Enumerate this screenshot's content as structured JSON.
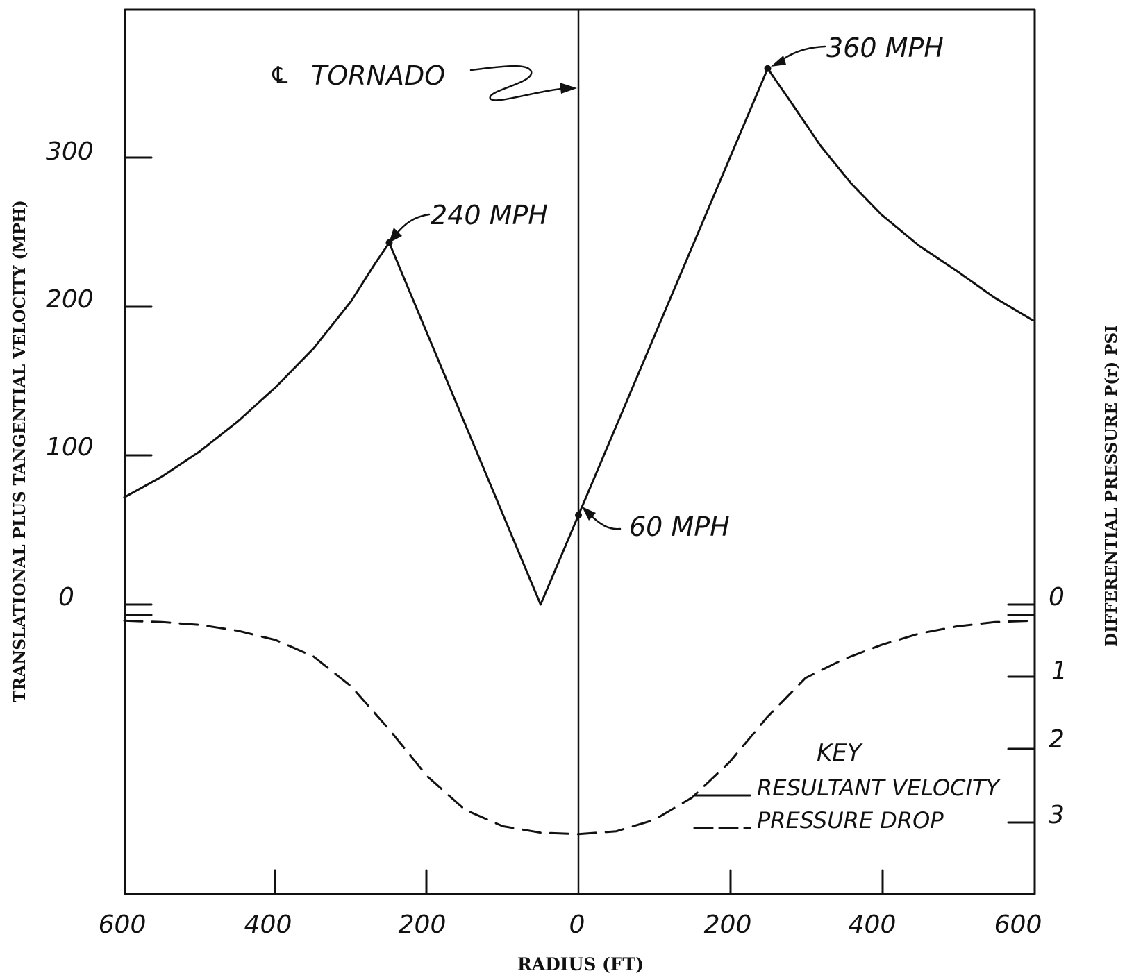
{
  "chart_data": {
    "type": "line",
    "title": "",
    "xlabel": "RADIUS (FT)",
    "ylabel_left": "TRANSLATIONAL PLUS TANGENTIAL VELOCITY (MPH)",
    "ylabel_right": "DIFFERENTIAL PRESSURE P(r) PSI",
    "x_tick_labels": [
      "600",
      "400",
      "200",
      "0",
      "200",
      "400",
      "600"
    ],
    "x_ticks": [
      -600,
      -400,
      -200,
      0,
      200,
      400,
      600
    ],
    "xlim": [
      -600,
      600
    ],
    "left_y_tick_labels": [
      "300",
      "200",
      "100",
      "0"
    ],
    "left_y_ticks": [
      300,
      200,
      100,
      0
    ],
    "ylim_left": [
      -215,
      390
    ],
    "right_y_tick_labels": [
      "0",
      "1",
      "2",
      "3"
    ],
    "right_y_ticks": [
      0,
      1,
      2,
      3
    ],
    "grid": false,
    "legend_position": "bottom-right",
    "legend_title": "KEY",
    "series": [
      {
        "name": "RESULTANT VELOCITY",
        "axis": "left",
        "style": "solid",
        "x": [
          -600,
          -550,
          -500,
          -450,
          -400,
          -350,
          -300,
          -270,
          -250,
          -50,
          0,
          250,
          280,
          320,
          360,
          400,
          450,
          500,
          550,
          600
        ],
        "y": [
          72,
          86,
          103,
          123,
          146,
          172,
          204,
          228,
          243,
          0,
          60,
          360,
          338,
          308,
          283,
          262,
          241,
          224,
          206,
          191
        ]
      },
      {
        "name": "PRESSURE DROP",
        "axis": "right",
        "style": "dashed",
        "x": [
          -600,
          -550,
          -500,
          -450,
          -400,
          -350,
          -300,
          -250,
          -200,
          -150,
          -100,
          -50,
          0,
          50,
          100,
          150,
          200,
          250,
          300,
          350,
          400,
          450,
          500,
          550,
          600
        ],
        "y": [
          0.08,
          0.1,
          0.14,
          0.22,
          0.35,
          0.58,
          1.0,
          1.6,
          2.25,
          2.72,
          2.95,
          3.04,
          3.06,
          3.02,
          2.86,
          2.55,
          2.05,
          1.42,
          0.88,
          0.62,
          0.42,
          0.26,
          0.16,
          0.1,
          0.08
        ]
      }
    ],
    "annotations": [
      {
        "text": "360 MPH",
        "x": 250,
        "y": 360
      },
      {
        "text": "240 MPH",
        "x": -250,
        "y": 243
      },
      {
        "text": "60 MPH",
        "x": 0,
        "y": 60
      }
    ],
    "centerline_label": "TORNADO",
    "centerline_symbol": "℄"
  }
}
